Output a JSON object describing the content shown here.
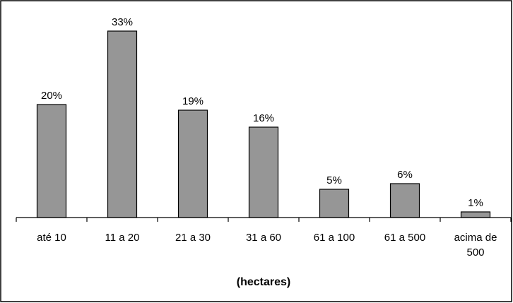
{
  "chart_data": {
    "type": "bar",
    "categories": [
      "até 10",
      "11 a 20",
      "21 a 30",
      "31 a 60",
      "61 a 100",
      "61 a 500",
      "acima de 500"
    ],
    "category_lines": [
      [
        "até 10"
      ],
      [
        "11 a 20"
      ],
      [
        "21 a 30"
      ],
      [
        "31 a 60"
      ],
      [
        "61 a 100"
      ],
      [
        "61 a 500"
      ],
      [
        "acima de",
        "500"
      ]
    ],
    "values": [
      20,
      33,
      19,
      16,
      5,
      6,
      1
    ],
    "data_labels": [
      "20%",
      "33%",
      "19%",
      "16%",
      "5%",
      "6%",
      "1%"
    ],
    "xlabel": "(hectares)",
    "ylim": [
      0,
      35
    ],
    "bar_color": "#969696",
    "grid": false,
    "legend": "none"
  }
}
